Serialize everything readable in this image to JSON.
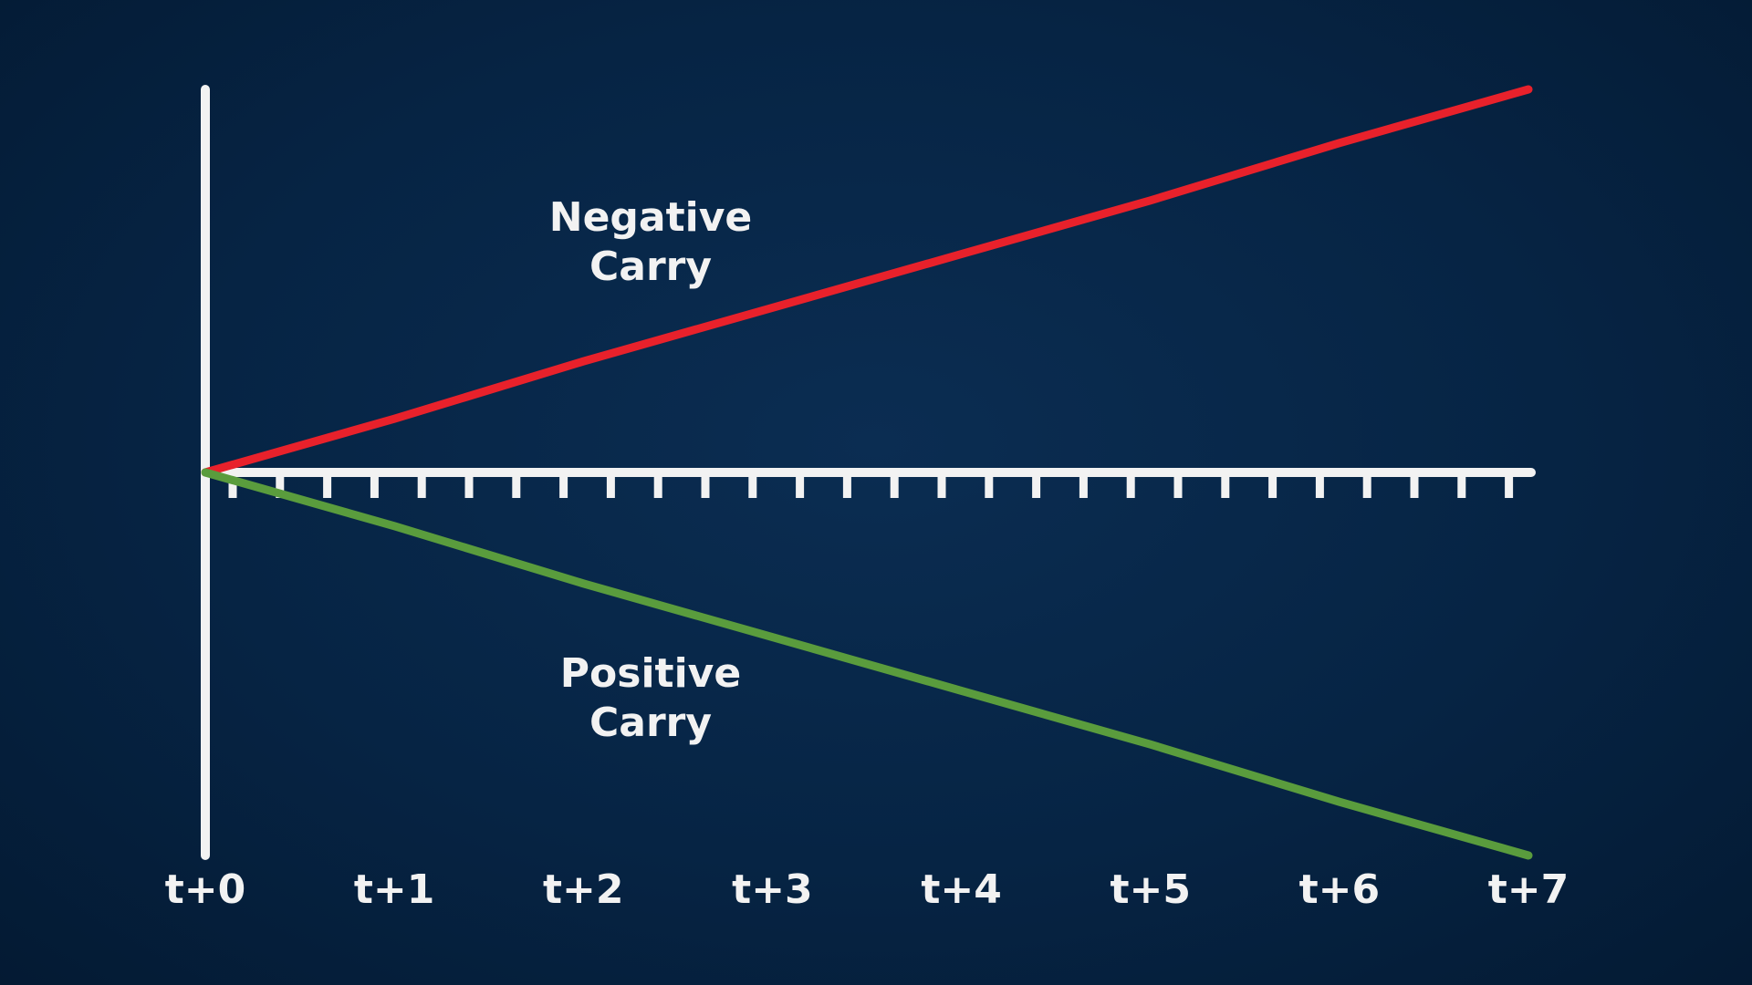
{
  "chart_data": {
    "type": "line",
    "categories": [
      "t+0",
      "t+1",
      "t+2",
      "t+3",
      "t+4",
      "t+5",
      "t+6",
      "t+7"
    ],
    "series": [
      {
        "name": "Negative Carry",
        "color": "#e8212b",
        "values": [
          0,
          0.14,
          0.29,
          0.43,
          0.57,
          0.71,
          0.86,
          1
        ]
      },
      {
        "name": "Positive Carry",
        "color": "#5a9c3d",
        "values": [
          0,
          -0.14,
          -0.29,
          -0.43,
          -0.57,
          -0.71,
          -0.86,
          -1
        ]
      }
    ],
    "ylim": [
      -1,
      1
    ]
  }
}
